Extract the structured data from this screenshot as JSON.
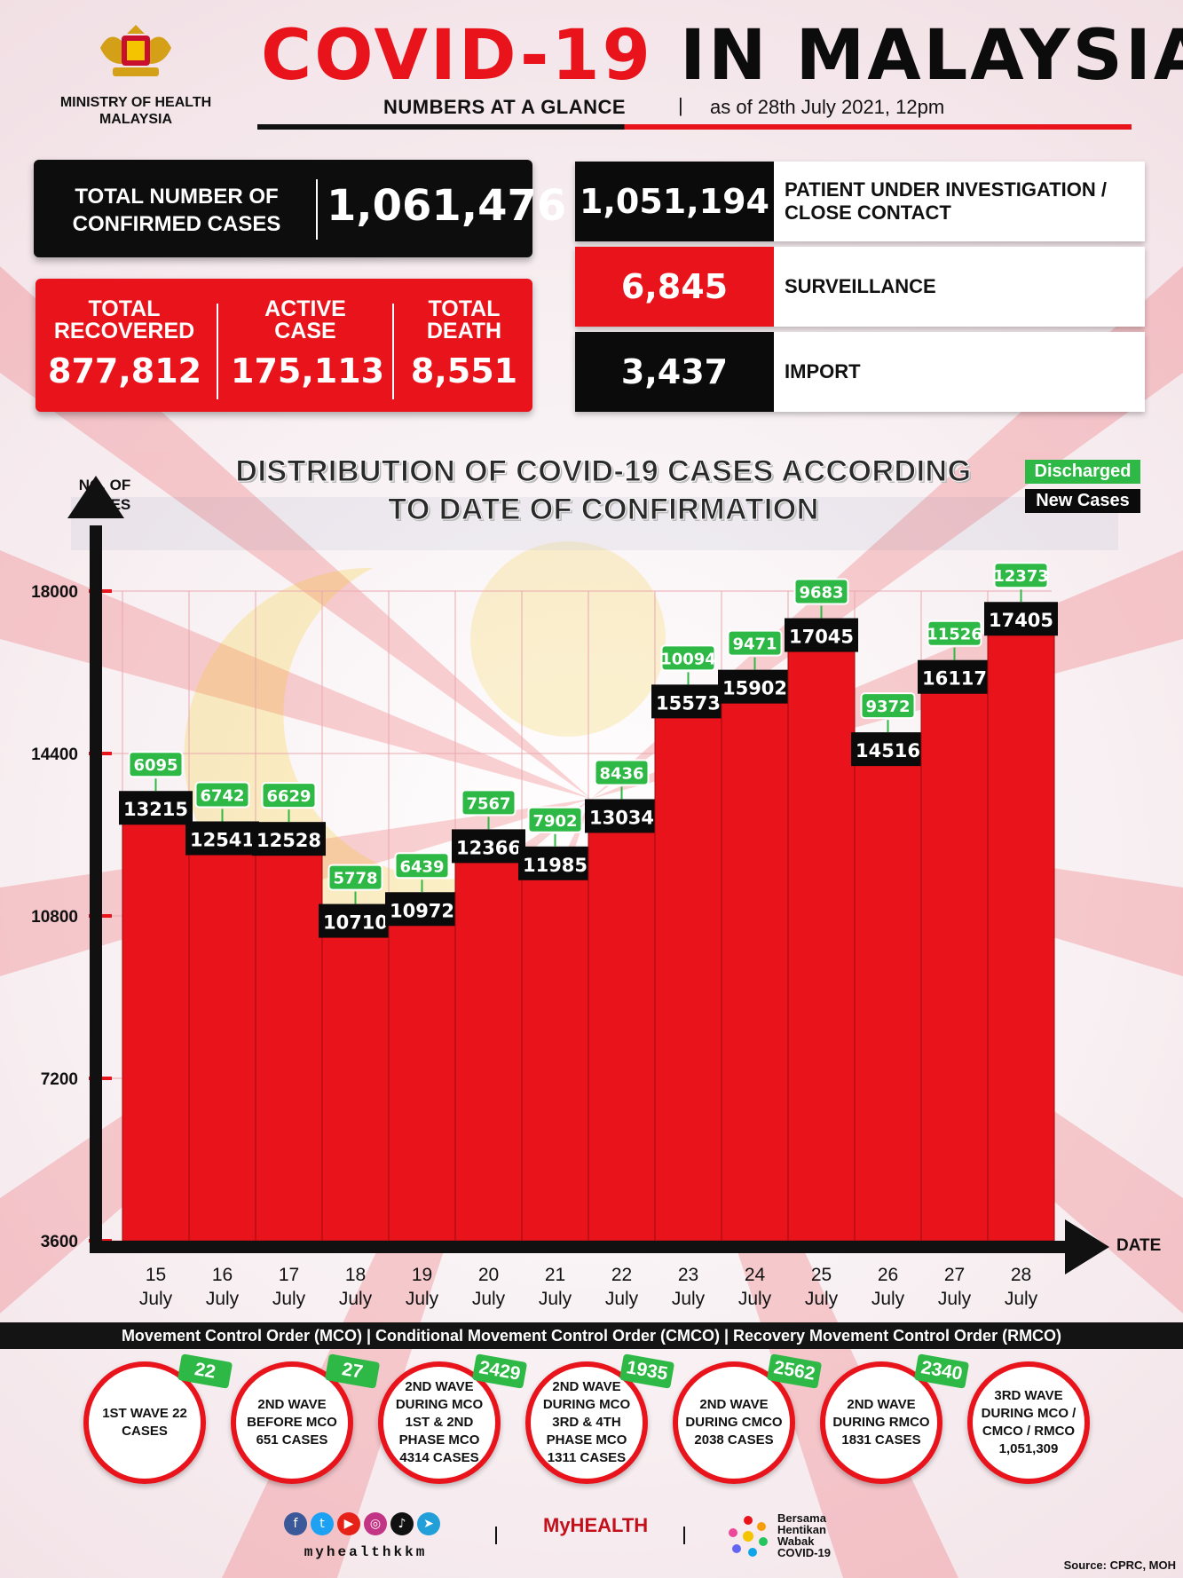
{
  "header": {
    "ministry": "MINISTRY OF HEALTH MALAYSIA",
    "title_red": "COVID-19",
    "title_black": "IN MALAYSIA",
    "subtitle": "NUMBERS AT A GLANCE",
    "separator": "|",
    "as_of": "as of 28th July 2021, 12pm"
  },
  "stats": {
    "confirmed_label": "TOTAL NUMBER OF CONFIRMED CASES",
    "confirmed_value": "1,061,476",
    "recovered_label": "TOTAL RECOVERED",
    "recovered_value": "877,812",
    "active_label": "ACTIVE CASE",
    "active_value": "175,113",
    "death_label": "TOTAL DEATH",
    "death_value": "8,551",
    "pui_value": "1,051,194",
    "pui_label": "PATIENT UNDER INVESTIGATION / CLOSE CONTACT",
    "surveillance_value": "6,845",
    "surveillance_label": "SURVEILLANCE",
    "import_value": "3,437",
    "import_label": "IMPORT"
  },
  "colors": {
    "red": "#e8131b",
    "black": "#0b0b0b",
    "green": "#2eb845"
  },
  "chart_data": {
    "type": "bar",
    "title": "DISTRIBUTION OF COVID-19 CASES ACCORDING TO DATE OF CONFIRMATION",
    "ylabel": "NO. OF CASES",
    "xlabel": "DATE",
    "ylim": [
      3600,
      18000
    ],
    "yticks": [
      3600,
      7200,
      10800,
      14400,
      18000
    ],
    "categories": [
      "15 July",
      "16 July",
      "17 July",
      "18 July",
      "19 July",
      "20 July",
      "21 July",
      "22 July",
      "23 July",
      "24 July",
      "25 July",
      "26 July",
      "27 July",
      "28 July"
    ],
    "category_days": [
      "15",
      "16",
      "17",
      "18",
      "19",
      "20",
      "21",
      "22",
      "23",
      "24",
      "25",
      "26",
      "27",
      "28"
    ],
    "category_month": "July",
    "series": [
      {
        "name": "New Cases",
        "values": [
          13215,
          12541,
          12528,
          10710,
          10972,
          12366,
          11985,
          13034,
          15573,
          15902,
          17045,
          14516,
          16117,
          17405
        ]
      },
      {
        "name": "Discharged",
        "values": [
          6095,
          6742,
          6629,
          5778,
          6439,
          7567,
          7902,
          8436,
          10094,
          9471,
          9683,
          9372,
          11526,
          12373
        ]
      }
    ],
    "legend": [
      "Discharged",
      "New Cases"
    ],
    "legend_position": "top-right",
    "grid": true
  },
  "mco": {
    "bar_text": "Movement Control Order (MCO) | Conditional Movement Control Order (CMCO) | Recovery Movement Control Order (RMCO)",
    "waves": [
      {
        "text": "1ST WAVE 22 CASES",
        "tag": "22"
      },
      {
        "text": "2ND WAVE BEFORE MCO 651 CASES",
        "tag": "27"
      },
      {
        "text": "2ND WAVE DURING MCO 1ST & 2ND PHASE MCO 4314 CASES",
        "tag": "2429"
      },
      {
        "text": "2ND WAVE DURING MCO 3RD & 4TH PHASE MCO 1311 CASES",
        "tag": "1935"
      },
      {
        "text": "2ND WAVE DURING CMCO 2038 CASES",
        "tag": "2562"
      },
      {
        "text": "2ND WAVE DURING RMCO 1831 CASES",
        "tag": "2340"
      },
      {
        "text": "3RD WAVE DURING MCO / CMCO / RMCO 1,051,309",
        "tag": ""
      }
    ]
  },
  "footer": {
    "handle": "myhealthkkm",
    "myhealth": "MyHEALTH",
    "bersama": [
      "Bersama",
      "Hentikan",
      "Wabak",
      "COVID-19"
    ],
    "source": "Source: CPRC, MOH"
  }
}
